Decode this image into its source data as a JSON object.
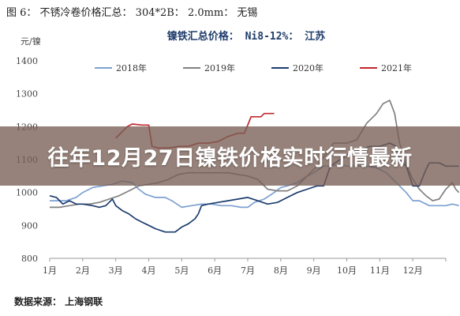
{
  "figure_caption": "图 6： 不锈冷卷价格汇总： 304*2B： 2.0mm： 无锡",
  "source_note": "数据来源： 上海钢联",
  "banner_title": "往年12月27日镍铁价格实时行情最新",
  "chart_data": {
    "type": "line",
    "title": "镍铁汇总价格： Ni8-12%： 江苏",
    "ylabel": "元/镍",
    "ylim": [
      800,
      1400
    ],
    "yticks": [
      800,
      900,
      1000,
      1100,
      1200,
      1300,
      1400
    ],
    "x_categories": [
      "1月",
      "2月",
      "3月",
      "4月",
      "5月",
      "6月",
      "7月",
      "8月",
      "9月",
      "10月",
      "11月",
      "12月"
    ],
    "xlim": [
      1,
      13
    ],
    "legend_position": "top",
    "grid": false,
    "series": [
      {
        "name": "2018年",
        "color": "#7da0d0",
        "points": [
          [
            1,
            975
          ],
          [
            1.2,
            975
          ],
          [
            1.5,
            975
          ],
          [
            1.8,
            985
          ],
          [
            2.0,
            1000
          ],
          [
            2.3,
            1015
          ],
          [
            2.6,
            1020
          ],
          [
            2.9,
            1025
          ],
          [
            3.2,
            1035
          ],
          [
            3.5,
            1030
          ],
          [
            3.7,
            1010
          ],
          [
            3.9,
            995
          ],
          [
            4.2,
            985
          ],
          [
            4.5,
            985
          ],
          [
            4.7,
            975
          ],
          [
            5.0,
            955
          ],
          [
            5.3,
            960
          ],
          [
            5.6,
            965
          ],
          [
            5.9,
            965
          ],
          [
            6.2,
            960
          ],
          [
            6.5,
            960
          ],
          [
            6.8,
            955
          ],
          [
            7.0,
            955
          ],
          [
            7.2,
            970
          ],
          [
            7.5,
            980
          ],
          [
            7.8,
            1000
          ],
          [
            8.0,
            1015
          ],
          [
            8.2,
            1020
          ],
          [
            8.5,
            1030
          ],
          [
            8.8,
            1050
          ],
          [
            9.0,
            1060
          ],
          [
            9.3,
            1080
          ],
          [
            9.5,
            1080
          ],
          [
            9.8,
            1085
          ],
          [
            10.0,
            1080
          ],
          [
            10.3,
            1080
          ],
          [
            10.6,
            1080
          ],
          [
            10.9,
            1075
          ],
          [
            11.2,
            1060
          ],
          [
            11.4,
            1040
          ],
          [
            11.6,
            1020
          ],
          [
            11.8,
            1000
          ],
          [
            12.0,
            975
          ],
          [
            12.2,
            975
          ],
          [
            12.5,
            960
          ],
          [
            12.8,
            960
          ],
          [
            13.0,
            960
          ],
          [
            13.2,
            965
          ],
          [
            13.4,
            960
          ]
        ]
      },
      {
        "name": "2019年",
        "color": "#808080",
        "points": [
          [
            1,
            955
          ],
          [
            1.3,
            955
          ],
          [
            1.6,
            960
          ],
          [
            1.9,
            965
          ],
          [
            2.2,
            965
          ],
          [
            2.5,
            970
          ],
          [
            2.8,
            980
          ],
          [
            3.1,
            990
          ],
          [
            3.4,
            1005
          ],
          [
            3.7,
            1020
          ],
          [
            4.0,
            1025
          ],
          [
            4.3,
            1030
          ],
          [
            4.6,
            1040
          ],
          [
            4.9,
            1055
          ],
          [
            5.2,
            1060
          ],
          [
            5.5,
            1060
          ],
          [
            5.8,
            1060
          ],
          [
            6.1,
            1060
          ],
          [
            6.4,
            1060
          ],
          [
            6.7,
            1055
          ],
          [
            7.0,
            1050
          ],
          [
            7.3,
            1040
          ],
          [
            7.6,
            1010
          ],
          [
            7.9,
            1005
          ],
          [
            8.2,
            1005
          ],
          [
            8.5,
            1020
          ],
          [
            8.8,
            1050
          ],
          [
            9.1,
            1080
          ],
          [
            9.4,
            1120
          ],
          [
            9.6,
            1150
          ],
          [
            9.8,
            1150
          ],
          [
            10.0,
            1150
          ],
          [
            10.3,
            1160
          ],
          [
            10.6,
            1210
          ],
          [
            10.9,
            1240
          ],
          [
            11.1,
            1270
          ],
          [
            11.3,
            1280
          ],
          [
            11.45,
            1240
          ],
          [
            11.6,
            1150
          ],
          [
            11.8,
            1085
          ],
          [
            12.0,
            1040
          ],
          [
            12.2,
            1010
          ],
          [
            12.4,
            990
          ],
          [
            12.6,
            975
          ],
          [
            12.8,
            980
          ],
          [
            13.0,
            1010
          ],
          [
            13.2,
            1030
          ],
          [
            13.3,
            1010
          ],
          [
            13.4,
            1000
          ]
        ]
      },
      {
        "name": "2020年",
        "color": "#1c3c6e",
        "points": [
          [
            1,
            990
          ],
          [
            1.2,
            985
          ],
          [
            1.4,
            965
          ],
          [
            1.6,
            975
          ],
          [
            1.8,
            965
          ],
          [
            2.0,
            965
          ],
          [
            2.3,
            960
          ],
          [
            2.5,
            955
          ],
          [
            2.7,
            960
          ],
          [
            2.9,
            980
          ],
          [
            3.0,
            960
          ],
          [
            3.2,
            945
          ],
          [
            3.4,
            935
          ],
          [
            3.6,
            920
          ],
          [
            3.8,
            910
          ],
          [
            4.0,
            900
          ],
          [
            4.2,
            890
          ],
          [
            4.5,
            880
          ],
          [
            4.8,
            880
          ],
          [
            5.0,
            895
          ],
          [
            5.2,
            905
          ],
          [
            5.4,
            920
          ],
          [
            5.5,
            935
          ],
          [
            5.6,
            960
          ],
          [
            5.8,
            965
          ],
          [
            6.1,
            970
          ],
          [
            6.4,
            975
          ],
          [
            6.7,
            980
          ],
          [
            7.0,
            985
          ],
          [
            7.3,
            975
          ],
          [
            7.6,
            965
          ],
          [
            7.9,
            970
          ],
          [
            8.2,
            985
          ],
          [
            8.5,
            1000
          ],
          [
            8.8,
            1010
          ],
          [
            9.1,
            1020
          ],
          [
            9.3,
            1020
          ],
          [
            9.5,
            1080
          ],
          [
            9.8,
            1100
          ],
          [
            10.1,
            1120
          ],
          [
            10.4,
            1130
          ],
          [
            10.7,
            1140
          ],
          [
            11.0,
            1140
          ],
          [
            11.3,
            1150
          ],
          [
            11.5,
            1140
          ],
          [
            11.6,
            1100
          ],
          [
            11.8,
            1080
          ],
          [
            12.0,
            1020
          ],
          [
            12.2,
            1020
          ],
          [
            12.4,
            1070
          ],
          [
            12.5,
            1090
          ],
          [
            12.8,
            1090
          ],
          [
            13.0,
            1080
          ],
          [
            13.2,
            1080
          ],
          [
            13.4,
            1080
          ]
        ]
      },
      {
        "name": "2021年",
        "color": "#c0282d",
        "points": [
          [
            3.0,
            1165
          ],
          [
            3.2,
            1185
          ],
          [
            3.35,
            1200
          ],
          [
            3.5,
            1208
          ],
          [
            3.8,
            1205
          ],
          [
            4.0,
            1205
          ],
          [
            4.1,
            1140
          ],
          [
            4.3,
            1135
          ],
          [
            4.6,
            1135
          ],
          [
            4.9,
            1140
          ],
          [
            5.2,
            1140
          ],
          [
            5.5,
            1150
          ],
          [
            5.8,
            1150
          ],
          [
            6.1,
            1155
          ],
          [
            6.4,
            1170
          ],
          [
            6.7,
            1180
          ],
          [
            6.9,
            1180
          ],
          [
            7.0,
            1205
          ],
          [
            7.1,
            1230
          ],
          [
            7.4,
            1230
          ],
          [
            7.5,
            1240
          ],
          [
            7.8,
            1240
          ]
        ]
      }
    ]
  }
}
